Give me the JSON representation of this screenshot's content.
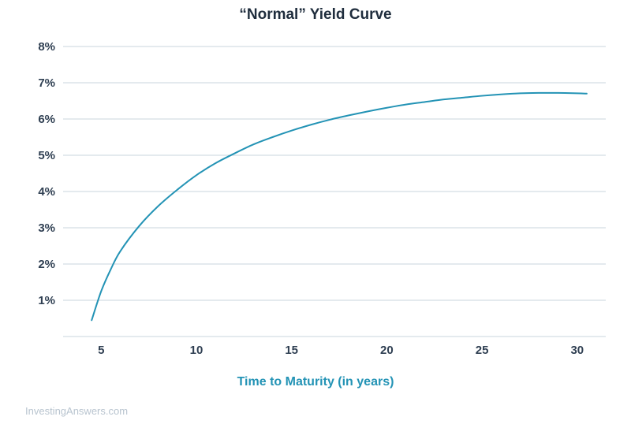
{
  "chart_data": {
    "type": "line",
    "title": "“Normal” Yield Curve",
    "xlabel": "Time to Maturity (in years)",
    "ylabel": "",
    "xlim": [
      3.0,
      31.5
    ],
    "ylim": [
      0,
      8
    ],
    "xticks": [
      5,
      10,
      15,
      20,
      25,
      30
    ],
    "xtick_labels": [
      "5",
      "10",
      "15",
      "20",
      "25",
      "30"
    ],
    "yticks": [
      1,
      2,
      3,
      4,
      5,
      6,
      7,
      8
    ],
    "ytick_labels": [
      "1%",
      "2%",
      "3%",
      "4%",
      "5%",
      "6%",
      "7%",
      "8%"
    ],
    "grid": true,
    "series": [
      {
        "color": "#2393b5",
        "x": [
          4.5,
          5,
          5.5,
          6,
          7,
          8,
          9,
          10,
          11,
          12,
          13,
          14,
          15,
          16,
          17,
          18,
          19,
          20,
          21,
          22,
          23,
          24,
          25,
          26,
          27,
          28,
          29,
          30,
          30.5
        ],
        "y": [
          0.45,
          1.25,
          1.85,
          2.35,
          3.05,
          3.6,
          4.05,
          4.45,
          4.78,
          5.05,
          5.3,
          5.5,
          5.68,
          5.84,
          5.98,
          6.1,
          6.21,
          6.31,
          6.4,
          6.47,
          6.54,
          6.59,
          6.64,
          6.68,
          6.71,
          6.72,
          6.72,
          6.71,
          6.7
        ]
      }
    ]
  },
  "credit": "InvestingAnswers.com"
}
